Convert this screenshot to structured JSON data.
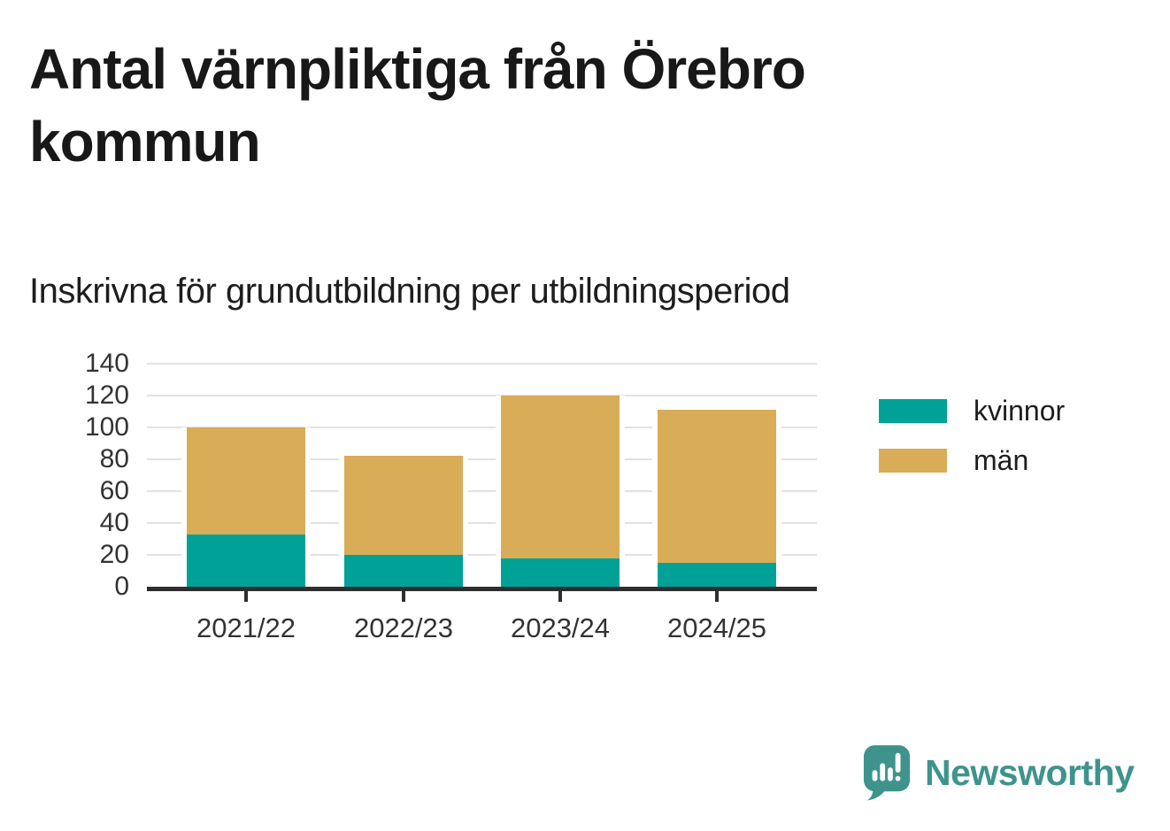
{
  "header": {
    "title": "Antal värnpliktiga från Örebro kommun",
    "subtitle": "Inskrivna för grundutbildning per utbildningsperiod"
  },
  "chart_data": {
    "type": "bar",
    "stacked": true,
    "title": "Antal värnpliktiga från Örebro kommun",
    "subtitle": "Inskrivna för grundutbildning per utbildningsperiod",
    "xlabel": "",
    "ylabel": "",
    "categories": [
      "2021/22",
      "2022/23",
      "2023/24",
      "2024/25"
    ],
    "series": [
      {
        "name": "kvinnor",
        "color": "#00a298",
        "values": [
          33,
          20,
          18,
          15
        ]
      },
      {
        "name": "män",
        "color": "#d9ac57",
        "values": [
          67,
          62,
          102,
          96
        ]
      }
    ],
    "totals": [
      100,
      82,
      120,
      111
    ],
    "ylim": [
      0,
      140
    ],
    "yticks": [
      0,
      20,
      40,
      60,
      80,
      100,
      120,
      140
    ],
    "grid": true,
    "legend_position": "right"
  },
  "legend": {
    "items": [
      {
        "label": "kvinnor",
        "color": "#00a298"
      },
      {
        "label": "män",
        "color": "#d9ac57"
      }
    ]
  },
  "branding": {
    "logo_text": "Newsworthy",
    "logo_color": "#3e948c",
    "logo_icon": "newsworthy-speech-bubble-bar-chart-icon"
  },
  "colors": {
    "background": "#ffffff",
    "title_text": "#181818",
    "axis_text": "#333333",
    "gridline": "#e2e2e2",
    "axis_line": "#2e2e2e",
    "kvinnor": "#00a298",
    "man": "#d9ac57"
  }
}
